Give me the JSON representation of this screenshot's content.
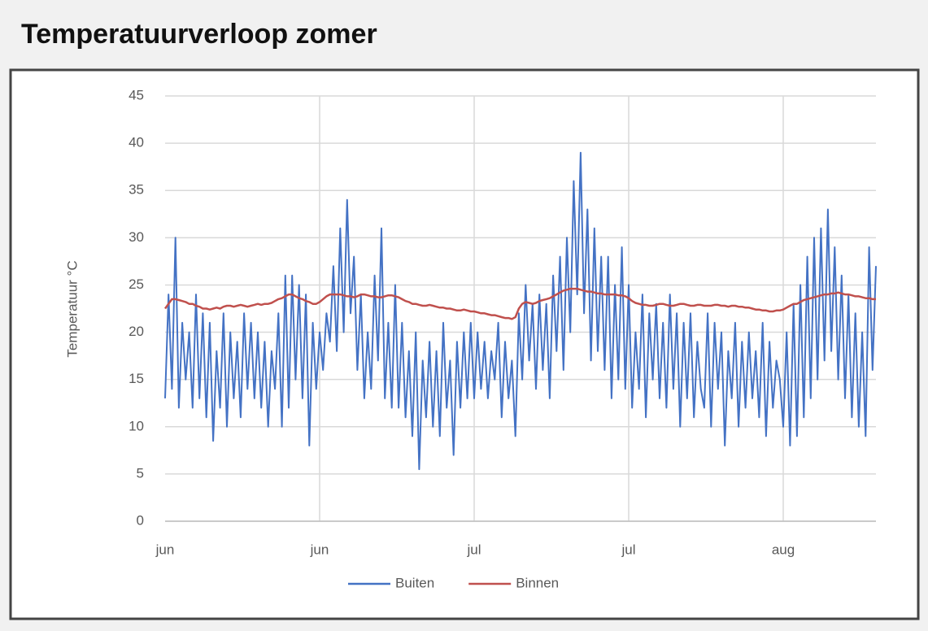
{
  "chart_data": {
    "type": "line",
    "title": "Temperatuurverloop zomer",
    "y_label": "Temperatuur °C",
    "categories": [
      "jun",
      null,
      null,
      null,
      null,
      null,
      null,
      null,
      null,
      null,
      null,
      null,
      null,
      null,
      null,
      null,
      null,
      null,
      null,
      null,
      null,
      null,
      null,
      null,
      null,
      null,
      null,
      null,
      null,
      null,
      null,
      null,
      null,
      null,
      null,
      null,
      null,
      null,
      null,
      null,
      null,
      null,
      null,
      null,
      null,
      "jun",
      null,
      null,
      null,
      null,
      null,
      null,
      null,
      null,
      null,
      null,
      null,
      null,
      null,
      null,
      null,
      null,
      null,
      null,
      null,
      null,
      null,
      null,
      null,
      null,
      null,
      null,
      null,
      null,
      null,
      null,
      null,
      null,
      null,
      null,
      null,
      null,
      null,
      null,
      null,
      null,
      null,
      null,
      null,
      null,
      "jul",
      null,
      null,
      null,
      null,
      null,
      null,
      null,
      null,
      null,
      null,
      null,
      null,
      null,
      null,
      null,
      null,
      null,
      null,
      null,
      null,
      null,
      null,
      null,
      null,
      null,
      null,
      null,
      null,
      null,
      null,
      null,
      null,
      null,
      null,
      null,
      null,
      null,
      null,
      null,
      null,
      null,
      null,
      null,
      null,
      "jul",
      null,
      null,
      null,
      null,
      null,
      null,
      null,
      null,
      null,
      null,
      null,
      null,
      null,
      null,
      null,
      null,
      null,
      null,
      null,
      null,
      null,
      null,
      null,
      null,
      null,
      null,
      null,
      null,
      null,
      null,
      null,
      null,
      null,
      null,
      null,
      null,
      null,
      null,
      null,
      null,
      null,
      null,
      null,
      null,
      "aug",
      null,
      null,
      null,
      null,
      null,
      null,
      null,
      null,
      null,
      null,
      null,
      null,
      null,
      null,
      null,
      null,
      null,
      null,
      null,
      null,
      null,
      null,
      null,
      null,
      null,
      null,
      null
    ],
    "series": [
      {
        "name": "Buiten",
        "color": "#4472c4",
        "values": [
          13,
          24,
          14,
          30,
          12,
          21,
          15,
          20,
          12,
          24,
          13,
          22,
          11,
          21,
          8.5,
          18,
          12,
          22,
          10,
          20,
          13,
          19,
          11,
          22,
          14,
          21,
          13,
          20,
          12,
          19,
          10,
          18,
          14,
          22,
          10,
          26,
          12,
          26,
          15,
          25,
          13,
          24,
          8,
          21,
          14,
          20,
          16,
          22,
          19,
          27,
          18,
          31,
          20,
          34,
          22,
          28,
          16,
          24,
          13,
          20,
          14,
          26,
          17,
          31,
          13,
          21,
          12,
          25,
          12,
          21,
          11,
          18,
          9,
          20,
          5.5,
          17,
          11,
          19,
          10,
          18,
          9,
          21,
          12,
          17,
          7,
          19,
          12,
          20,
          13,
          21,
          13,
          20,
          14,
          19,
          13,
          18,
          15,
          21,
          11,
          19,
          13,
          17,
          9,
          22,
          15,
          25,
          17,
          23,
          14,
          24,
          16,
          23,
          13,
          26,
          18,
          28,
          16,
          30,
          20,
          36,
          24,
          39,
          22,
          33,
          17,
          31,
          18,
          28,
          16,
          28,
          13,
          25,
          15,
          29,
          14,
          25,
          12,
          20,
          14,
          24,
          11,
          22,
          15,
          23,
          13,
          21,
          12,
          24,
          14,
          22,
          10,
          21,
          13,
          22,
          11,
          19,
          14,
          12,
          22,
          10,
          21,
          14,
          20,
          8,
          18,
          13,
          21,
          10,
          19,
          12,
          20,
          13,
          18,
          11,
          21,
          9,
          19,
          12,
          17,
          15,
          10,
          20,
          8,
          23,
          9,
          25,
          11,
          28,
          13,
          30,
          15,
          31,
          17,
          33,
          18,
          29,
          15,
          26,
          13,
          24,
          11,
          22,
          10,
          20,
          9,
          29,
          16,
          27
        ]
      },
      {
        "name": "Binnen",
        "color": "#c0504d",
        "values": [
          22.5,
          23,
          23.5,
          23.5,
          23.4,
          23.3,
          23.2,
          23,
          23,
          22.8,
          22.7,
          22.5,
          22.5,
          22.4,
          22.5,
          22.6,
          22.5,
          22.7,
          22.8,
          22.8,
          22.7,
          22.8,
          22.9,
          22.8,
          22.7,
          22.8,
          22.9,
          23,
          22.9,
          23,
          23,
          23.1,
          23.3,
          23.5,
          23.6,
          23.8,
          24,
          24,
          23.8,
          23.6,
          23.5,
          23.3,
          23.2,
          23,
          23,
          23.2,
          23.5,
          23.8,
          24,
          24,
          24,
          24,
          23.9,
          23.8,
          23.8,
          23.7,
          23.8,
          24,
          24,
          23.9,
          23.8,
          23.8,
          23.7,
          23.7,
          23.8,
          23.9,
          23.9,
          23.8,
          23.7,
          23.5,
          23.3,
          23.2,
          23,
          23,
          22.9,
          22.8,
          22.8,
          22.9,
          22.8,
          22.7,
          22.6,
          22.6,
          22.5,
          22.5,
          22.4,
          22.3,
          22.3,
          22.4,
          22.3,
          22.2,
          22.2,
          22.1,
          22,
          22,
          21.9,
          21.8,
          21.8,
          21.7,
          21.6,
          21.5,
          21.5,
          21.4,
          21.6,
          22.5,
          23,
          23.2,
          23.1,
          23,
          23.1,
          23.3,
          23.4,
          23.5,
          23.6,
          23.8,
          24,
          24.2,
          24.4,
          24.5,
          24.6,
          24.6,
          24.6,
          24.5,
          24.4,
          24.3,
          24.3,
          24.2,
          24.1,
          24.1,
          24,
          24,
          24,
          24,
          23.9,
          23.9,
          23.8,
          23.6,
          23.3,
          23.1,
          23,
          22.9,
          22.9,
          22.8,
          22.8,
          22.9,
          23,
          23,
          22.9,
          22.8,
          22.8,
          22.9,
          23,
          23,
          22.9,
          22.8,
          22.8,
          22.9,
          22.9,
          22.8,
          22.8,
          22.8,
          22.9,
          22.9,
          22.8,
          22.8,
          22.7,
          22.8,
          22.8,
          22.7,
          22.7,
          22.6,
          22.6,
          22.5,
          22.4,
          22.4,
          22.3,
          22.3,
          22.2,
          22.2,
          22.3,
          22.3,
          22.4,
          22.6,
          22.8,
          23,
          23,
          23.2,
          23.4,
          23.5,
          23.6,
          23.7,
          23.8,
          23.9,
          24,
          24,
          24.1,
          24.1,
          24.2,
          24.1,
          24,
          24,
          23.9,
          23.8,
          23.8,
          23.7,
          23.6,
          23.6,
          23.5,
          23.5
        ]
      }
    ],
    "ylim": [
      0,
      45
    ],
    "yticks": [
      0,
      5,
      10,
      15,
      20,
      25,
      30,
      35,
      40,
      45
    ],
    "grid": true,
    "legend": "bottom"
  }
}
